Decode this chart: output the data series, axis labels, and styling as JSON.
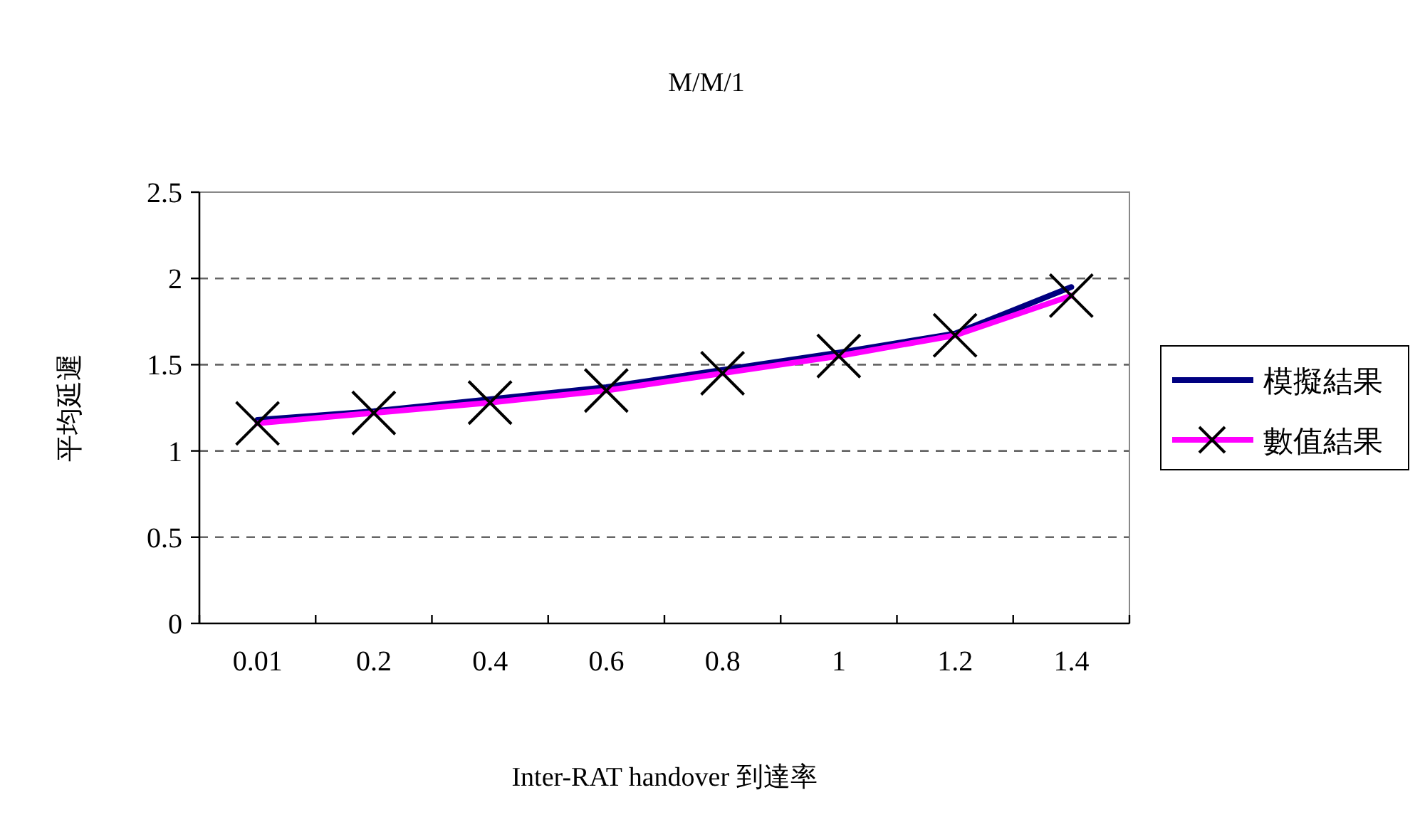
{
  "chart_data": {
    "type": "line",
    "title": "M/M/1",
    "xlabel": "Inter-RAT handover 到達率",
    "ylabel": "平均延遲",
    "categories": [
      "0.01",
      "0.2",
      "0.4",
      "0.6",
      "0.8",
      "1",
      "1.2",
      "1.4"
    ],
    "series": [
      {
        "name": "模擬結果",
        "color": "#000080",
        "values": [
          1.18,
          1.23,
          1.3,
          1.37,
          1.47,
          1.57,
          1.68,
          1.95
        ],
        "marker": "none"
      },
      {
        "name": "數值結果",
        "color": "#ff00ff",
        "values": [
          1.16,
          1.22,
          1.28,
          1.35,
          1.45,
          1.55,
          1.67,
          1.9
        ],
        "marker": "cross"
      }
    ],
    "ylim": [
      0,
      2.5
    ],
    "yticks": [
      0,
      0.5,
      1,
      1.5,
      2,
      2.5
    ],
    "grid": "y",
    "legend": "right",
    "line_style": "solid"
  }
}
